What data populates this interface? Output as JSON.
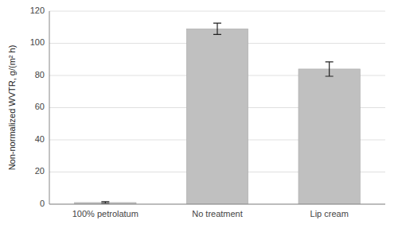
{
  "chart_data": {
    "type": "bar",
    "categories": [
      "100% petrolatum",
      "No treatment",
      "Lip cream"
    ],
    "values": [
      1.0,
      109.0,
      84.0
    ],
    "errors": [
      0.5,
      3.5,
      4.5
    ],
    "color": "#c0c0c0",
    "ylabel": "Non-normalized WVTR, g/(m² h)",
    "ylim": [
      0,
      120
    ],
    "yticks": [
      0,
      20,
      40,
      60,
      80,
      100,
      120
    ],
    "grid": true
  }
}
